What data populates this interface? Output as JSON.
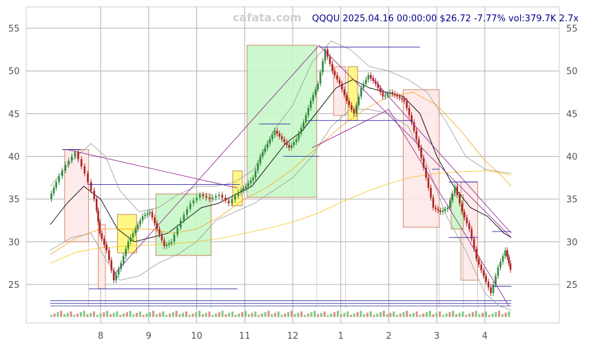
{
  "chart_data": {
    "type": "line",
    "title": "QQQU 2025.04.16 00:00:00 $26.72 -7.77% vol:379.7K 2.7x",
    "watermark": "cafata.com",
    "xlabel": "",
    "ylabel": "",
    "categories": [
      "8",
      "9",
      "10",
      "11",
      "12",
      "1",
      "2",
      "3",
      "4"
    ],
    "x_range": [
      -1.55,
      9.55
    ],
    "ylim": [
      20.5,
      57.5
    ],
    "yticks": [
      25,
      30,
      35,
      40,
      45,
      50,
      55
    ],
    "grid": true,
    "series": [
      {
        "role": "price",
        "color": "#222222",
        "x": [
          -1.05,
          -0.9,
          -0.7,
          -0.5,
          -0.3,
          -0.1,
          0.0,
          0.15,
          0.3,
          0.45,
          0.6,
          0.75,
          0.9,
          1.05,
          1.2,
          1.35,
          1.5,
          1.7,
          1.9,
          2.1,
          2.3,
          2.5,
          2.7,
          2.9,
          3.05,
          3.2,
          3.35,
          3.5,
          3.65,
          3.8,
          3.95,
          4.1,
          4.25,
          4.4,
          4.55,
          4.7,
          4.85,
          5.0,
          5.15,
          5.3,
          5.45,
          5.6,
          5.75,
          5.9,
          6.05,
          6.2,
          6.35,
          6.5,
          6.65,
          6.8,
          6.95,
          7.1,
          7.25,
          7.4,
          7.55,
          7.7,
          7.85,
          8.0,
          8.15,
          8.3,
          8.45,
          8.55
        ],
        "values": [
          35.0,
          37.0,
          39.0,
          40.5,
          38.0,
          35.0,
          31.0,
          29.0,
          25.5,
          27.5,
          30.0,
          31.5,
          33.0,
          33.5,
          31.5,
          29.5,
          30.0,
          32.5,
          34.5,
          35.5,
          35.0,
          35.5,
          34.5,
          35.8,
          36.5,
          37.5,
          40.0,
          41.5,
          43.0,
          42.0,
          41.0,
          42.0,
          44.0,
          46.5,
          48.5,
          52.5,
          50.0,
          48.5,
          46.5,
          45.0,
          48.0,
          49.5,
          48.5,
          47.0,
          47.5,
          47.0,
          46.5,
          44.0,
          41.0,
          37.5,
          34.0,
          33.5,
          34.0,
          36.5,
          33.5,
          31.5,
          28.0,
          26.0,
          24.0,
          27.0,
          29.0,
          26.72
        ]
      },
      {
        "role": "moving-average-short",
        "color": "#000000",
        "x": [
          -1.05,
          -0.7,
          -0.35,
          0.0,
          0.35,
          0.7,
          1.05,
          1.4,
          1.75,
          2.1,
          2.45,
          2.8,
          3.15,
          3.5,
          3.85,
          4.2,
          4.55,
          4.9,
          5.25,
          5.6,
          5.95,
          6.3,
          6.65,
          7.0,
          7.35,
          7.7,
          8.05,
          8.4,
          8.55
        ],
        "values": [
          32.0,
          34.5,
          36.5,
          35.0,
          31.5,
          30.0,
          30.5,
          31.0,
          32.5,
          34.0,
          34.5,
          35.5,
          36.5,
          39.0,
          41.5,
          43.0,
          45.5,
          48.0,
          49.0,
          48.0,
          47.5,
          47.0,
          45.0,
          40.0,
          36.5,
          34.0,
          33.0,
          31.0,
          30.5
        ]
      },
      {
        "role": "moving-average-medium",
        "color": "#f5a623",
        "x": [
          -1.05,
          -0.5,
          0.0,
          0.5,
          1.0,
          1.5,
          2.0,
          2.5,
          3.0,
          3.5,
          4.0,
          4.5,
          5.0,
          5.5,
          6.0,
          6.5,
          7.0,
          7.5,
          8.0,
          8.3,
          8.55
        ],
        "values": [
          28.5,
          30.5,
          31.5,
          31.5,
          31.5,
          31.0,
          31.5,
          33.0,
          35.0,
          36.5,
          38.5,
          41.0,
          43.5,
          45.5,
          47.0,
          47.5,
          46.0,
          43.0,
          39.5,
          38.0,
          36.5
        ]
      },
      {
        "role": "moving-average-long",
        "color": "#f5c518",
        "x": [
          -1.05,
          -0.5,
          0.0,
          0.5,
          1.0,
          1.5,
          2.0,
          2.5,
          3.0,
          3.5,
          4.0,
          4.5,
          5.0,
          5.5,
          6.0,
          6.5,
          7.0,
          7.5,
          8.0,
          8.3,
          8.55
        ],
        "values": [
          27.5,
          28.8,
          29.3,
          29.5,
          29.6,
          29.8,
          30.0,
          30.4,
          31.0,
          31.6,
          32.3,
          33.3,
          34.6,
          35.8,
          36.8,
          37.6,
          38.0,
          38.2,
          38.3,
          38.1,
          37.8
        ]
      },
      {
        "role": "bollinger-upper",
        "color": "#999999",
        "x": [
          -1.05,
          -0.6,
          -0.2,
          0.1,
          0.4,
          0.8,
          1.2,
          1.6,
          2.0,
          2.4,
          2.8,
          3.2,
          3.6,
          4.0,
          4.4,
          4.8,
          5.2,
          5.6,
          6.0,
          6.4,
          6.8,
          7.2,
          7.6,
          8.0,
          8.3,
          8.55
        ],
        "values": [
          36.5,
          39.5,
          41.5,
          40.0,
          36.0,
          33.5,
          34.0,
          35.5,
          36.5,
          36.5,
          37.0,
          38.5,
          43.0,
          46.0,
          51.0,
          53.5,
          52.5,
          50.5,
          50.0,
          49.0,
          47.5,
          44.0,
          40.0,
          38.5,
          38.2,
          38.0
        ]
      },
      {
        "role": "bollinger-lower",
        "color": "#999999",
        "x": [
          -1.05,
          -0.6,
          -0.2,
          0.1,
          0.4,
          0.8,
          1.2,
          1.6,
          2.0,
          2.4,
          2.8,
          3.2,
          3.6,
          4.0,
          4.4,
          4.8,
          5.2,
          5.6,
          6.0,
          6.4,
          6.8,
          7.2,
          7.6,
          8.0,
          8.3,
          8.55
        ],
        "values": [
          29.0,
          30.5,
          31.0,
          28.0,
          25.5,
          26.0,
          27.5,
          28.5,
          30.0,
          32.5,
          33.5,
          34.5,
          36.0,
          37.5,
          40.0,
          43.5,
          45.5,
          45.5,
          45.0,
          43.5,
          39.0,
          33.0,
          29.0,
          24.0,
          22.5,
          22.0
        ]
      }
    ],
    "zones": [
      {
        "x0": -0.75,
        "x1": -0.25,
        "y0": 30.0,
        "y1": 40.8,
        "kind": "decline"
      },
      {
        "x0": -0.05,
        "x1": 0.1,
        "y0": 24.5,
        "y1": 32.0,
        "kind": "decline"
      },
      {
        "x0": 0.35,
        "x1": 0.75,
        "y0": 28.7,
        "y1": 33.2,
        "kind": "consolidation"
      },
      {
        "x0": 1.15,
        "x1": 2.3,
        "y0": 28.4,
        "y1": 35.6,
        "kind": "advance"
      },
      {
        "x0": 2.75,
        "x1": 2.95,
        "y0": 34.2,
        "y1": 38.3,
        "kind": "consolidation"
      },
      {
        "x0": 3.05,
        "x1": 4.5,
        "y0": 35.2,
        "y1": 53.0,
        "kind": "advance"
      },
      {
        "x0": 4.85,
        "x1": 5.1,
        "y0": 44.8,
        "y1": 50.5,
        "kind": "decline"
      },
      {
        "x0": 5.15,
        "x1": 5.35,
        "y0": 44.2,
        "y1": 50.5,
        "kind": "consolidation"
      },
      {
        "x0": 6.3,
        "x1": 7.05,
        "y0": 31.7,
        "y1": 47.8,
        "kind": "decline"
      },
      {
        "x0": 7.5,
        "x1": 7.85,
        "y0": 25.5,
        "y1": 37.0,
        "kind": "decline"
      },
      {
        "x0": 7.3,
        "x1": 7.55,
        "y0": 31.5,
        "y1": 35.5,
        "kind": "advance"
      }
    ],
    "trendlines": [
      {
        "x0": -0.7,
        "y0": 40.8,
        "x1": 2.85,
        "y1": 36.3
      },
      {
        "x0": 0.25,
        "y0": 26.0,
        "x1": 4.55,
        "y1": 53.0
      },
      {
        "x0": 4.55,
        "y0": 53.0,
        "x1": 8.55,
        "y1": 30.5
      },
      {
        "x0": 4.4,
        "y0": 41.0,
        "x1": 6.0,
        "y1": 45.5
      },
      {
        "x0": 6.0,
        "y0": 45.5,
        "x1": 8.5,
        "y1": 22.5
      },
      {
        "x0": 5.6,
        "y0": 49.5,
        "x1": 8.55,
        "y1": 31.0
      }
    ],
    "levels": [
      {
        "x0": -0.8,
        "x1": -0.4,
        "y": 40.8
      },
      {
        "x0": -0.25,
        "x1": 2.9,
        "y": 36.7
      },
      {
        "x0": -0.25,
        "x1": 2.85,
        "y": 24.5
      },
      {
        "x0": 3.3,
        "x1": 3.95,
        "y": 43.8
      },
      {
        "x0": 3.8,
        "x1": 4.55,
        "y": 40.0
      },
      {
        "x0": 4.55,
        "x1": 6.65,
        "y": 52.8
      },
      {
        "x0": 4.3,
        "x1": 6.5,
        "y": 44.2
      },
      {
        "x0": 6.9,
        "x1": 7.05,
        "y": 38.5
      },
      {
        "x0": 7.25,
        "x1": 7.85,
        "y": 37.0
      },
      {
        "x0": 7.25,
        "x1": 7.85,
        "y": 30.5
      },
      {
        "x0": 8.15,
        "x1": 8.55,
        "y": 31.2
      },
      {
        "x0": 8.15,
        "x1": 8.55,
        "y": 24.8
      }
    ],
    "volume_baselines": [
      23.1,
      22.8,
      22.5
    ],
    "colors": {
      "up_candle": "#2e8b3a",
      "down_candle": "#b22222",
      "trendline": "#8b1a8b",
      "level": "#2a2aa8",
      "decline_zone_fill": "#fde8e8",
      "decline_zone_edge": "#d08060",
      "advance_zone_fill": "#c8f7c8",
      "advance_zone_edge": "#c08050",
      "consolidation_zone_fill": "#fff87a",
      "consolidation_zone_edge": "#c08050",
      "grid": "#b0b0b0",
      "title": "#00008b"
    }
  }
}
